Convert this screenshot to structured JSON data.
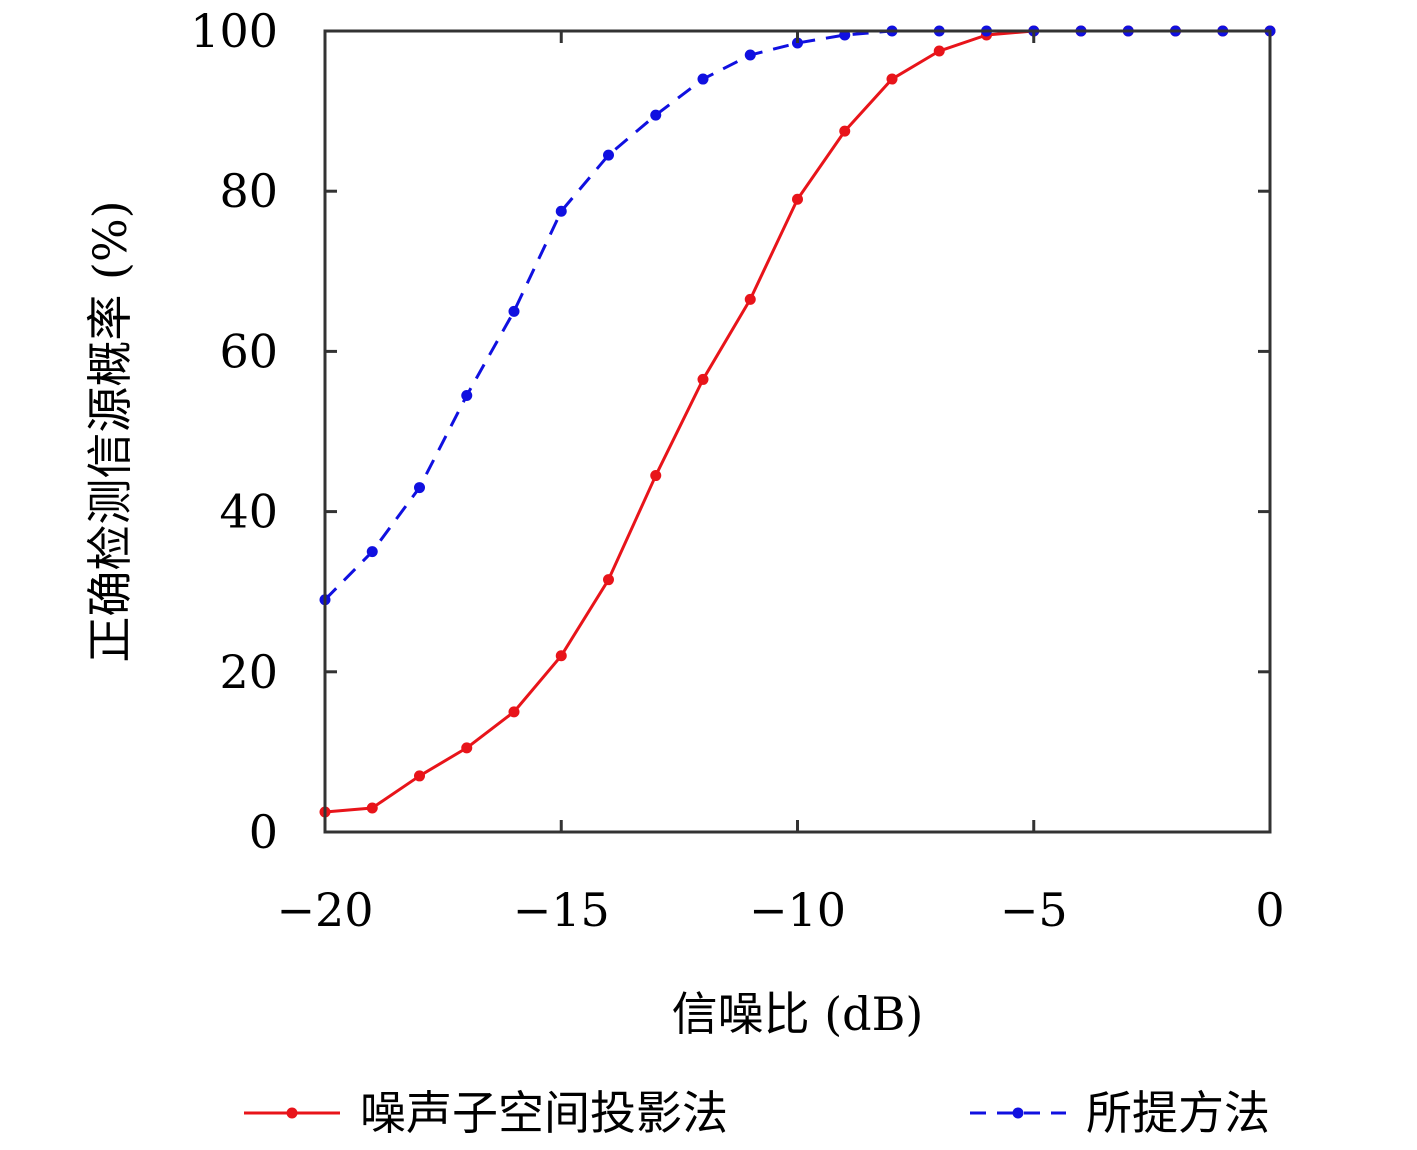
{
  "chart_data": {
    "type": "line",
    "title": "",
    "xlabel": "信噪比 (dB)",
    "ylabel": "正确检测信源概率 (%)",
    "xlim": [
      -20,
      0
    ],
    "ylim": [
      0,
      100
    ],
    "x_ticks": [
      -20,
      -15,
      -10,
      -5,
      0
    ],
    "x_tick_labels": [
      "−20",
      "−15",
      "−10",
      "−5",
      "0"
    ],
    "y_ticks": [
      0,
      20,
      40,
      60,
      80,
      100
    ],
    "y_tick_labels": [
      "0",
      "20",
      "40",
      "60",
      "80",
      "100"
    ],
    "grid": false,
    "legend_position": "bottom",
    "x": [
      -20,
      -19,
      -18,
      -17,
      -16,
      -15,
      -14,
      -13,
      -12,
      -11,
      -10,
      -9,
      -8,
      -7,
      -6,
      -5,
      -4,
      -3,
      -2,
      -1,
      0
    ],
    "series": [
      {
        "name": "噪声子空间投影法",
        "color": "#e8141a",
        "line_style": "solid",
        "marker": "dot",
        "values": [
          2.5,
          3,
          7,
          10.5,
          15,
          22,
          31.5,
          44.5,
          56.5,
          66.5,
          79,
          87.5,
          94,
          97.5,
          99.5,
          100,
          100,
          100,
          100,
          100,
          100
        ]
      },
      {
        "name": "所提方法",
        "color": "#1010e0",
        "line_style": "dashed",
        "marker": "dot",
        "values": [
          29,
          35,
          43,
          54.5,
          65,
          77.5,
          84.5,
          89.5,
          94,
          97,
          98.5,
          99.5,
          100,
          100,
          100,
          100,
          100,
          100,
          100,
          100,
          100
        ]
      }
    ]
  }
}
